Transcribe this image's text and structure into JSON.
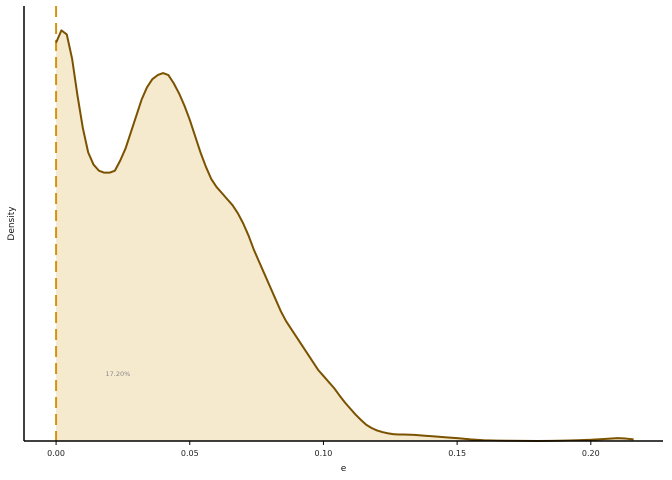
{
  "chart_data": {
    "type": "area",
    "title": "",
    "xlabel": "e",
    "ylabel": "Density",
    "xlim": [
      -0.012,
      0.227
    ],
    "ylim": [
      0,
      1.07
    ],
    "x_ticks": [
      0.0,
      0.05,
      0.1,
      0.15,
      0.2
    ],
    "x_tick_labels": [
      "0.00",
      "0.05",
      "0.10",
      "0.15",
      "0.20"
    ],
    "y_ticks_shown": false,
    "grid": false,
    "legend": "none",
    "reference_line": {
      "x": 0.0,
      "style": "dashed",
      "color": "#D4930F"
    },
    "annotation": {
      "text": "17.20%",
      "x": 0.0185,
      "y": 0.16
    },
    "colors": {
      "fill": "#F5E9CE",
      "line": "#7A5200",
      "axis": "#000000"
    },
    "series": [
      {
        "x": [
          0.0,
          0.002,
          0.004,
          0.006,
          0.008,
          0.01,
          0.012,
          0.014,
          0.016,
          0.018,
          0.02,
          0.022,
          0.024,
          0.026,
          0.028,
          0.03,
          0.032,
          0.034,
          0.036,
          0.038,
          0.04,
          0.042,
          0.044,
          0.046,
          0.048,
          0.05,
          0.052,
          0.054,
          0.056,
          0.058,
          0.06,
          0.062,
          0.064,
          0.066,
          0.068,
          0.07,
          0.072,
          0.074,
          0.076,
          0.078,
          0.08,
          0.082,
          0.084,
          0.086,
          0.088,
          0.09,
          0.092,
          0.094,
          0.096,
          0.098,
          0.1,
          0.102,
          0.104,
          0.106,
          0.108,
          0.11,
          0.112,
          0.114,
          0.116,
          0.118,
          0.12,
          0.122,
          0.124,
          0.126,
          0.128,
          0.13,
          0.134,
          0.138,
          0.142,
          0.146,
          0.15,
          0.155,
          0.16,
          0.165,
          0.17,
          0.175,
          0.18,
          0.185,
          0.19,
          0.195,
          0.2,
          0.205,
          0.21,
          0.213,
          0.216
        ],
        "y": [
          0.98,
          1.01,
          1.0,
          0.94,
          0.85,
          0.77,
          0.71,
          0.68,
          0.665,
          0.66,
          0.66,
          0.665,
          0.69,
          0.72,
          0.76,
          0.8,
          0.84,
          0.87,
          0.89,
          0.9,
          0.905,
          0.9,
          0.88,
          0.855,
          0.825,
          0.79,
          0.75,
          0.71,
          0.675,
          0.645,
          0.625,
          0.61,
          0.595,
          0.58,
          0.56,
          0.535,
          0.505,
          0.47,
          0.44,
          0.41,
          0.38,
          0.35,
          0.32,
          0.295,
          0.275,
          0.255,
          0.235,
          0.215,
          0.195,
          0.175,
          0.16,
          0.145,
          0.13,
          0.112,
          0.095,
          0.08,
          0.065,
          0.052,
          0.04,
          0.032,
          0.026,
          0.022,
          0.019,
          0.017,
          0.016,
          0.016,
          0.015,
          0.013,
          0.011,
          0.009,
          0.007,
          0.004,
          0.002,
          0.001,
          0.0005,
          0.0002,
          0.0001,
          0.0002,
          0.001,
          0.002,
          0.003,
          0.005,
          0.007,
          0.006,
          0.004
        ]
      }
    ]
  }
}
